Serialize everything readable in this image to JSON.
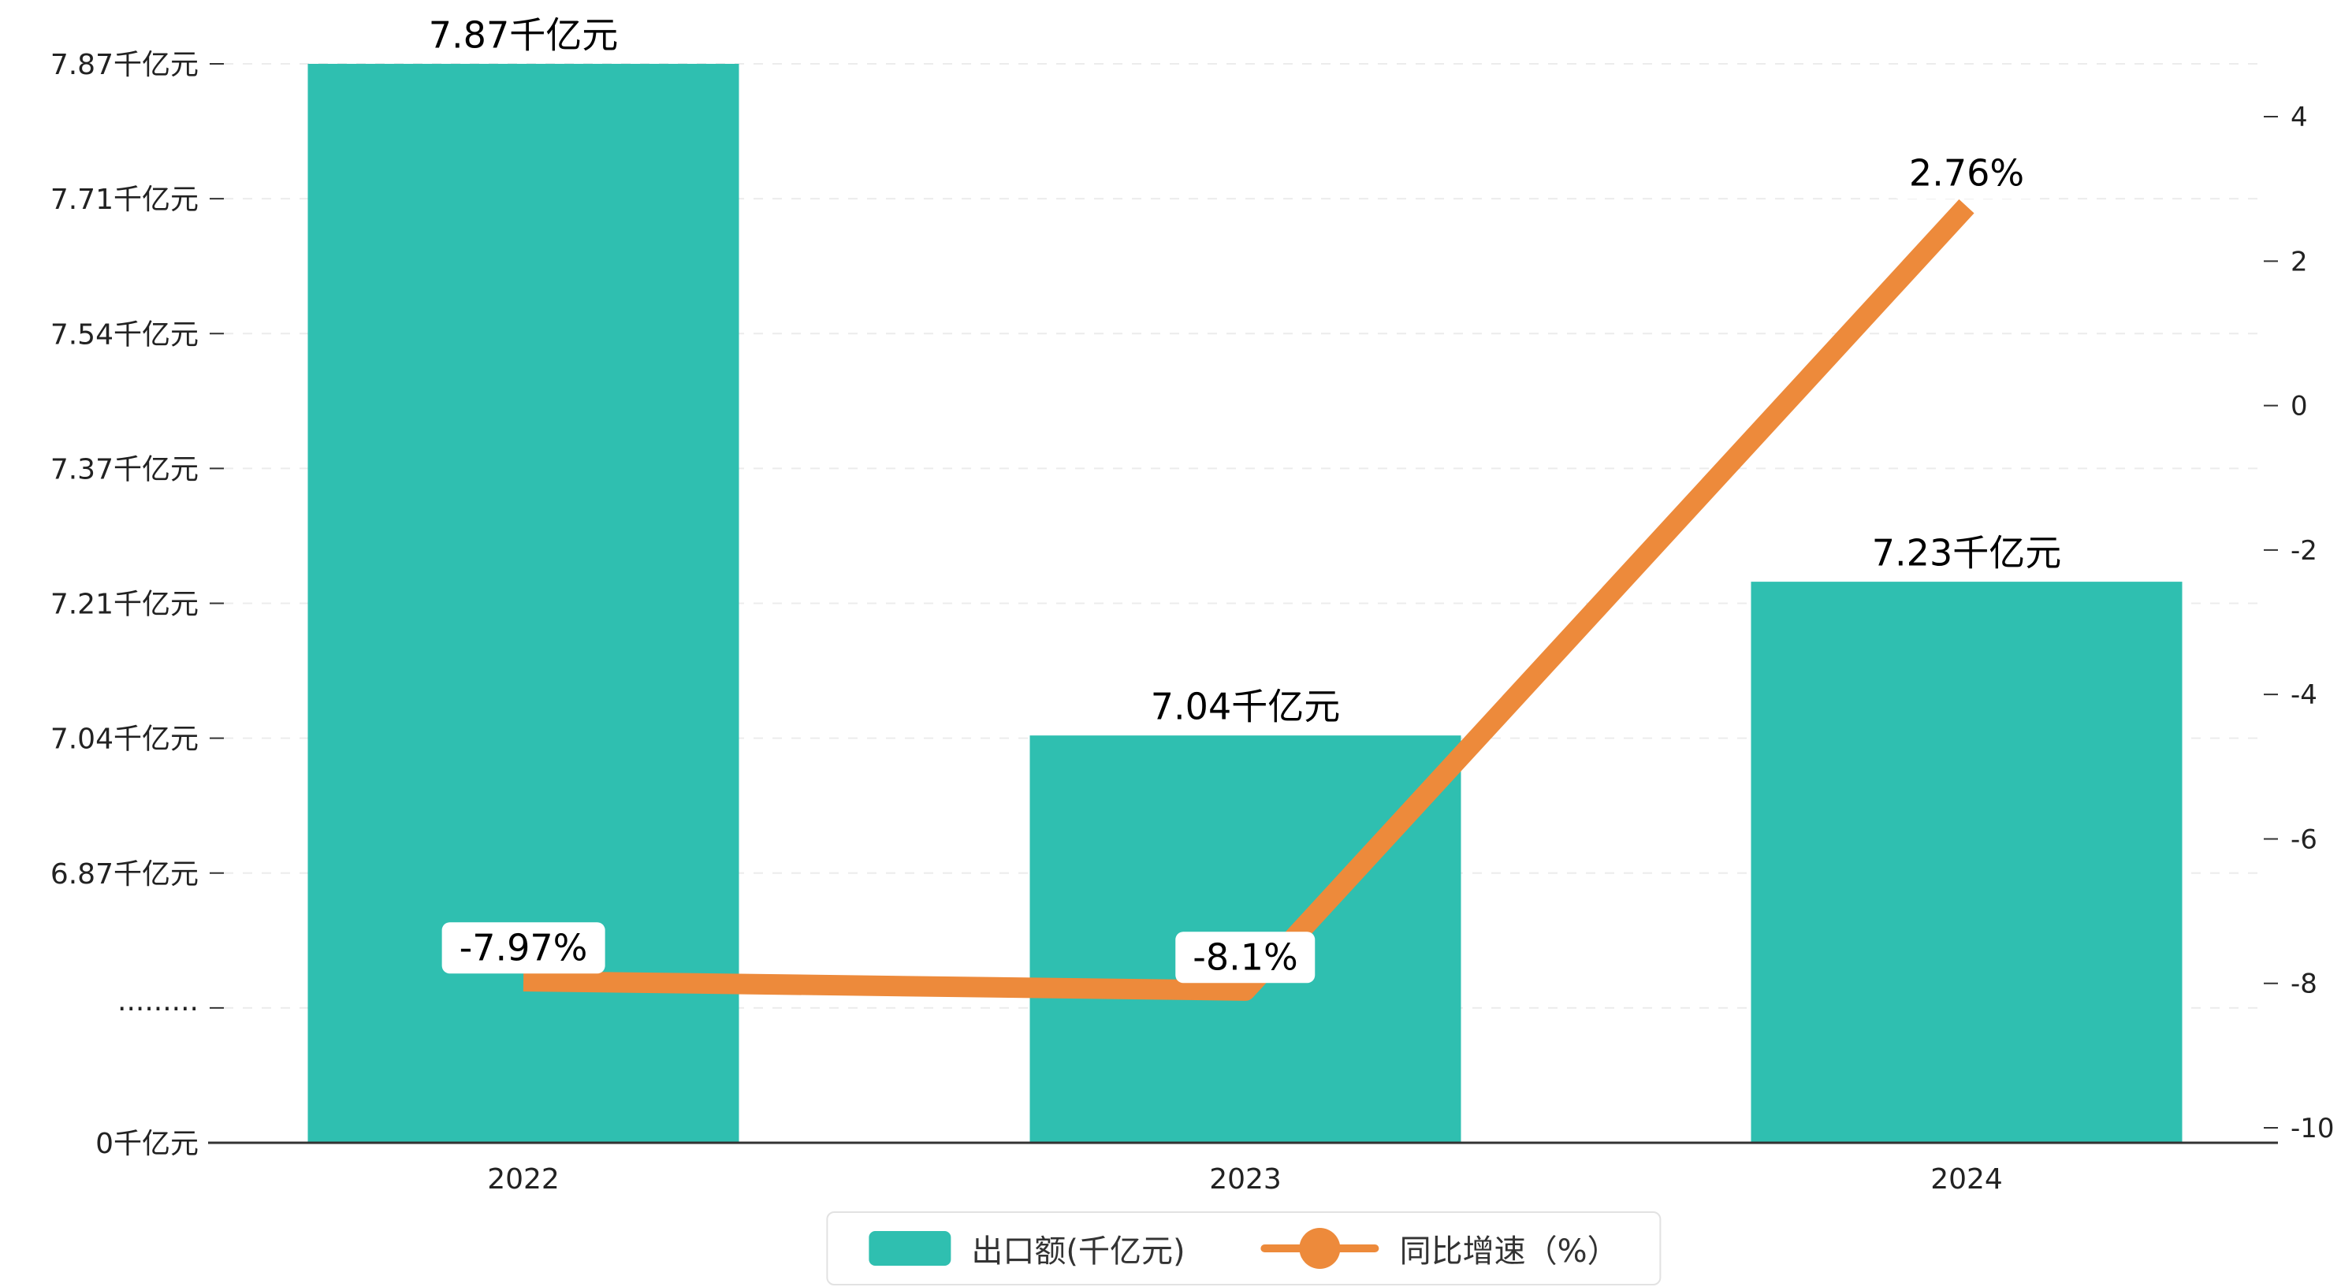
{
  "chart_data": {
    "type": "bar",
    "subtype": "bar+line combo, dual y-axes",
    "categories": [
      "2022",
      "2023",
      "2024"
    ],
    "series": [
      {
        "name": "出口额(千亿元)",
        "type": "bar",
        "axis": "left",
        "values": [
          7.87,
          7.04,
          7.23
        ],
        "point_labels": [
          "7.87千亿元",
          "7.04千亿元",
          "7.23千亿元"
        ]
      },
      {
        "name": "同比增速（%）",
        "type": "line",
        "axis": "right",
        "values": [
          -7.97,
          -8.1,
          2.76
        ],
        "point_labels": [
          "-7.97%",
          "-8.1%",
          "2.76%"
        ]
      }
    ],
    "left_axis": {
      "unit": "千亿元",
      "tick_labels": [
        "7.87千亿元",
        "7.71千亿元",
        "7.54千亿元",
        "7.37千亿元",
        "7.21千亿元",
        "7.04千亿元",
        "6.87千亿元",
        "·········",
        "0千亿元"
      ],
      "broken_axis": true
    },
    "right_axis": {
      "tick_labels": [
        "4",
        "2",
        "0",
        "-2",
        "-4",
        "-6",
        "-8",
        "-10"
      ],
      "range": [
        -10,
        4
      ]
    },
    "legend": {
      "position": "bottom",
      "entries": [
        "出口额(千亿元)",
        "同比增速（%）"
      ]
    },
    "title": "",
    "grid": "horizontal dashed lines"
  },
  "colors": {
    "bar": "#2fbfb0",
    "line": "#ed8a3b",
    "grid": "#ececec",
    "axis_line": "#333333",
    "tick_text": "#222222",
    "label_text": "#000000",
    "legend_border": "#e2e2e2"
  }
}
